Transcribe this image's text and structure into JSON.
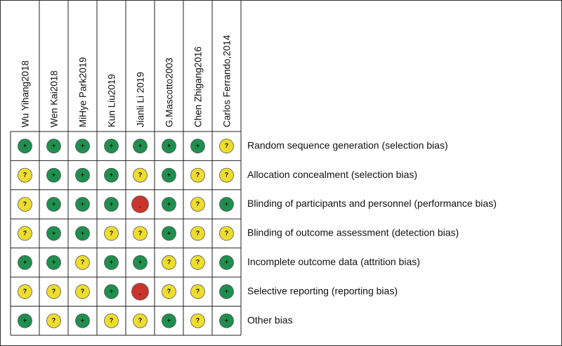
{
  "studies": [
    "Wu Yihang2018",
    "Wen Kai2018",
    "MiHye Park2019",
    "Kun Liu2019",
    "Jianli Li 2019",
    "G.Mascotto2003",
    "Chen Zhigang2016",
    "Carlos Ferrando,2014"
  ],
  "domains": [
    "Random sequence generation (selection bias)",
    "Allocation concealment (selection bias)",
    "Blinding of participants and personnel (performance bias)",
    "Blinding of outcome assessment (detection bias)",
    "Incomplete outcome data (attrition bias)",
    "Selective reporting (reporting bias)",
    "Other bias"
  ],
  "judgments": [
    [
      "+",
      "+",
      "+",
      "+",
      "+",
      "+",
      "+",
      "?"
    ],
    [
      "?",
      "+",
      "+",
      "+",
      "?",
      "+",
      "?",
      "?"
    ],
    [
      "?",
      "+",
      "+",
      "+",
      "-",
      "+",
      "?",
      "+"
    ],
    [
      "?",
      "+",
      "+",
      "?",
      "?",
      "+",
      "?",
      "?"
    ],
    [
      "+",
      "+",
      "?",
      "+",
      "+",
      "?",
      "?",
      "+"
    ],
    [
      "?",
      "?",
      "?",
      "+",
      "-",
      "?",
      "?",
      "+"
    ],
    [
      "+",
      "?",
      "+",
      "?",
      "?",
      "+",
      "?",
      "+"
    ]
  ],
  "judgment_colors": {
    "+": "#1f8f4e",
    "?": "#eedc2e",
    "-": "#c9352c"
  }
}
